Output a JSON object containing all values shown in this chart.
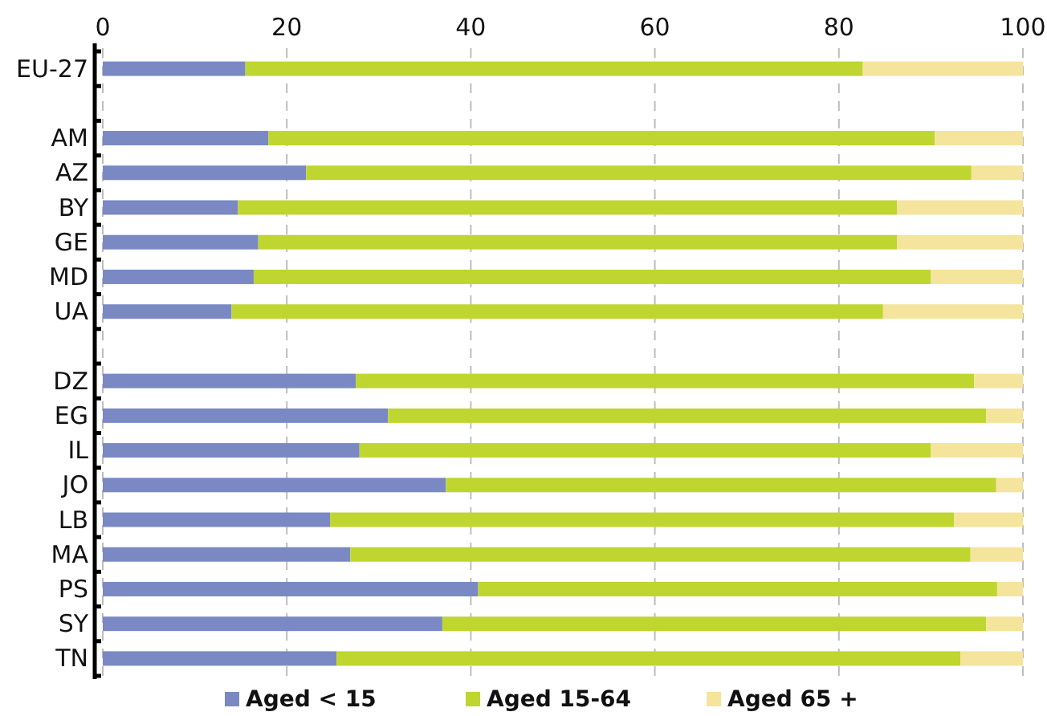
{
  "chart_data": {
    "type": "bar",
    "orientation": "horizontal",
    "stacked": true,
    "categories": [
      "EU-27",
      null,
      "AM",
      "AZ",
      "BY",
      "GE",
      "MD",
      "UA",
      null,
      "DZ",
      "EG",
      "IL",
      "JO",
      "LB",
      "MA",
      "PS",
      "SY",
      "TN"
    ],
    "series": [
      {
        "name": "Aged < 15",
        "color": "#7a88c4",
        "values": [
          15.5,
          null,
          18.0,
          22.1,
          14.7,
          16.9,
          16.4,
          14.0,
          null,
          27.5,
          31.0,
          27.9,
          37.3,
          24.7,
          26.9,
          40.8,
          36.9,
          25.4
        ]
      },
      {
        "name": "Aged 15-64",
        "color": "#bed62f",
        "values": [
          67.1,
          null,
          72.4,
          72.3,
          71.6,
          69.4,
          73.6,
          70.8,
          null,
          67.2,
          65.0,
          62.1,
          59.8,
          67.8,
          67.4,
          56.4,
          59.1,
          67.8
        ]
      },
      {
        "name": "Aged 65 +",
        "color": "#f5e49c",
        "values": [
          17.4,
          null,
          9.6,
          5.6,
          13.7,
          13.7,
          10.0,
          15.2,
          null,
          5.3,
          4.0,
          10.0,
          2.9,
          7.5,
          5.7,
          2.8,
          4.0,
          6.8
        ]
      }
    ],
    "xlim": [
      0,
      100
    ],
    "xticks": [
      0,
      20,
      40,
      60,
      80,
      100
    ],
    "grid": "x",
    "legend": "bottom"
  }
}
